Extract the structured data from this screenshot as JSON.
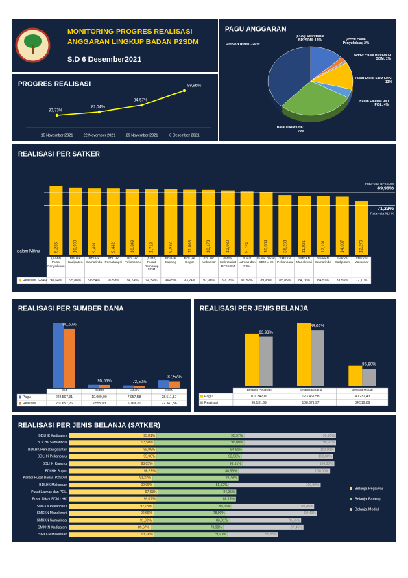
{
  "header": {
    "title_lines": [
      "MONITORING PROGRES REALISASI",
      "ANGGARAN LINGKUP BADAN P2SDM"
    ],
    "date": "S.D 6 Desember2021"
  },
  "chart_data": [
    {
      "type": "line",
      "title": "PROGRES REALISASI",
      "categories": [
        "15 November 2021",
        "22 November 2021",
        "29 November 2021",
        "6 Desember 2021"
      ],
      "values": [
        80.73,
        82.04,
        84.57,
        89.96
      ],
      "value_labels": [
        "80,73%",
        "82,04%",
        "84,57%",
        "89,96%"
      ],
      "color": "#ffff00"
    },
    {
      "type": "pie",
      "title": "PAGU ANGGARAN",
      "categories": [
        "(5439) Sekretariat BP2SDM; 13%",
        "(5444) Pusat Penyuluhan; 2%",
        "(5440) Pusat Rombang SDM; 1%",
        "Pusat Diklat SDM LHK; 13%",
        "Pusat Latmas dan PGL; 4%",
        "Balai Diklat LHK; 29%",
        "SMKKN Negeri; 38%"
      ],
      "values": [
        13,
        2,
        1,
        13,
        4,
        29,
        38
      ],
      "colors": [
        "#4472c4",
        "#ed7d31",
        "#a5a5a5",
        "#ffc000",
        "#5b9bd5",
        "#70ad47",
        "#264478"
      ]
    },
    {
      "type": "bar",
      "title": "REALISASI PER SATKER",
      "y_label": "dalam Milyar",
      "categories": [
        "(5444) Pusat Penyuluhan",
        "BDLHK Kadipaten",
        "BDLHK Samarinda",
        "BDLHK Pematangsiantar",
        "BDLHK Pekanbaru",
        "(5440) Pusat Rombang SDM",
        "BDLHK Kupang",
        "BDLHK Bogor",
        "BDLHK Makassar",
        "(5439) Sekretariat BP2SDM",
        "Pusat Latmas dan PGL",
        "Pusat Diklat SDM LHK",
        "SMKKN Pekanbaru",
        "SMKKN Manokwari",
        "SMKKN Samarinda",
        "SMKKN Kadipaten",
        "SMKKN Makassar"
      ],
      "series": [
        {
          "name": "Realisasi SPAN",
          "color": "#ffc000",
          "values": [
            98.64,
            95.88,
            95.54,
            95.53,
            94.74,
            94.54,
            94.45,
            93.24,
            92.98,
            92.18,
            91.52,
            89.93,
            85.85,
            84.76,
            84.51,
            83.55,
            77.11
          ],
          "value_labels": [
            "98,64%",
            "95,88%",
            "95,54%",
            "95,53%",
            "94,74%",
            "94,54%",
            "94,45%",
            "93,24%",
            "92,98%",
            "92,18%",
            "91,52%",
            "89,93%",
            "85,85%",
            "84,76%",
            "84,51%",
            "83,55%",
            "77,11%"
          ]
        }
      ],
      "amount_labels": [
        "5,286",
        "10,999",
        "9,491",
        "9,442",
        "10,849",
        "1,718",
        "9,932",
        "11,068",
        "10,178",
        "12,980",
        "9,724",
        "10,664",
        "36,203",
        "11,021",
        "12,191",
        "14,007",
        "12,270"
      ],
      "reference_lines": [
        {
          "name": "Rata-rata BP2SDM",
          "value": 89.96,
          "value_label": "89,96%"
        },
        {
          "name": "Rata-rata KLHK",
          "value": 71.22,
          "value_label": "71,22%"
        }
      ]
    },
    {
      "type": "bar",
      "title": "REALISASI PER SUMBER DANA",
      "categories": [
        "RM",
        "PNBP",
        "Hibah",
        "SBSN"
      ],
      "series": [
        {
          "name": "Pagu",
          "color": "#4472c4",
          "values": [
            222567.91,
            10000.0,
            7957.58,
            25511.17
          ],
          "value_labels": [
            "222.567,91",
            "10.000,00",
            "7.957,58",
            "25.511,17"
          ]
        },
        {
          "name": "Realisasi",
          "color": "#ed7d31",
          "values": [
            201657.26,
            9555.93,
            5769.21,
            22341.36
          ],
          "value_labels": [
            "201.657,26",
            "9.555,93",
            "5.769,21",
            "22.341,36"
          ]
        }
      ],
      "annotations": [
        "90,60%",
        "95,56%",
        "72,50%",
        "87,57%"
      ]
    },
    {
      "type": "bar",
      "title": "REALISASI PER JENIS BELANJA",
      "categories": [
        "Belanja Pegawai",
        "Belanja Barang",
        "Belanja Modal"
      ],
      "series": [
        {
          "name": "Pagu",
          "color": "#ffc000",
          "values": [
            102342.66,
            123461.58,
            40232.43
          ],
          "value_labels": [
            "102.342,66",
            "123.461,58",
            "40.232,43"
          ]
        },
        {
          "name": "Realisasi",
          "color": "#a5a5a5",
          "values": [
            96131.69,
            108671.97,
            34519.89
          ],
          "value_labels": [
            "96.131,69",
            "108.671,97",
            "34.519,89"
          ]
        }
      ],
      "annotations": [
        "93,93%",
        "88,02%",
        "85,80%"
      ]
    },
    {
      "type": "barh",
      "stacked": true,
      "title": "REALISASI PER JENIS BELANJA (SATKER)",
      "categories": [
        "BDLHK Kadipaten",
        "BDLHK Samarinda",
        "BDLHK Pematangsiantar",
        "BDLHK Pekanbaru",
        "BDLHK Kupang",
        "BDLHK Bogor",
        "Kantor Pusat Badan P2SDM",
        "BDLHK Makassar",
        "Pusat Latmas dan PGL",
        "Pusat Diklat SDM LHK",
        "SMKKN Pekanbaru",
        "SMKKN Manokwari",
        "SMKKN Samarinda",
        "SMKKN Kadipaten",
        "SMKKN Makassar"
      ],
      "series": [
        {
          "name": "Belanja Pegawai",
          "color": "#ffd966",
          "values": [
            95.81,
            93.5,
            95.86,
            95.9,
            93.05,
            96.25,
            91.23,
            92.95,
            97.63,
            96.07,
            92.18,
            92.69,
            91.9,
            89.67,
            93.24
          ],
          "value_labels": [
            "95,81%",
            "93,50%",
            "95,86%",
            "95,90%",
            "93,05%",
            "96,25%",
            "91,23%",
            "92,95%",
            "97,63%",
            "96,07%",
            "92,18%",
            "92,69%",
            "91,90%",
            "89,67%",
            "93,24%"
          ]
        },
        {
          "name": "Belanja Barang",
          "color": "#a9d18e",
          "values": [
            95.57,
            98.0,
            94.6,
            92.5,
            96.51,
            88.55,
            93.79,
            81.62,
            84.95,
            86.15,
            86.05,
            78.99,
            83.01,
            78.98,
            79.6
          ],
          "value_labels": [
            "95,57%",
            "98,00%",
            "94,60%",
            "92,50%",
            "96,51%",
            "88,55%",
            "93,79%",
            "81,62%",
            "84,95%",
            "86,15%",
            "86,05%",
            "78,99%",
            "83,01%",
            "78,98%",
            "79,60%"
          ]
        },
        {
          "name": "Belanja Modal",
          "color": "#c9c9c9",
          "values": [
            99.95,
            99.91,
            100.0,
            100.0,
            100.0,
            100.0,
            null,
            100.0,
            null,
            null,
            89.45,
            99.4,
            78.55,
            87.45,
            55.55
          ],
          "value_labels": [
            "99,95%",
            "99,91%",
            "100,00%",
            "100,00%",
            "100,00%",
            "100,00%",
            null,
            "100,00%",
            null,
            null,
            "89,45%",
            "99,40%",
            "78,55%",
            "87,45%",
            "55,55%"
          ]
        }
      ]
    }
  ]
}
